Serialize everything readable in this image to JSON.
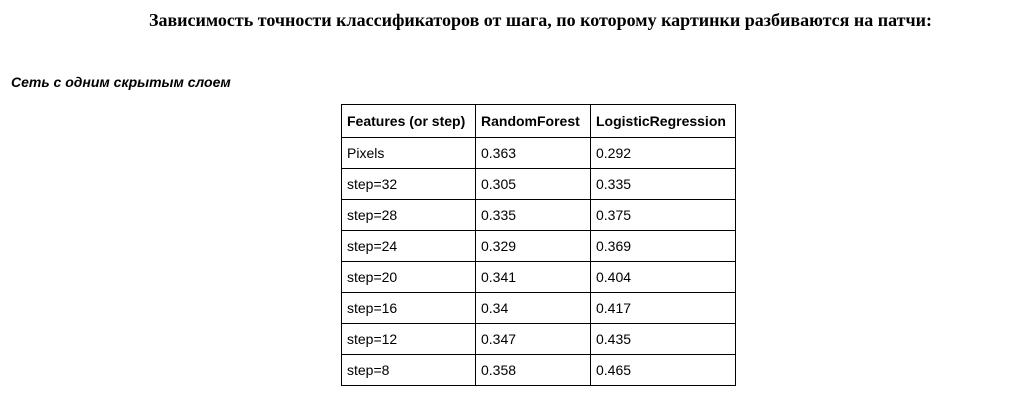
{
  "document": {
    "title": "Зависимость точности классификаторов от шага, по которому картинки разбиваются на патчи:",
    "section_heading": "Сеть с одним скрытым слоем"
  },
  "table": {
    "headers": [
      "Features (or step)",
      "RandomForest",
      "LogisticRegression"
    ],
    "rows": [
      [
        "Pixels",
        "0.363",
        "0.292"
      ],
      [
        "step=32",
        "0.305",
        "0.335"
      ],
      [
        "step=28",
        "0.335",
        "0.375"
      ],
      [
        "step=24",
        "0.329",
        "0.369"
      ],
      [
        "step=20",
        "0.341",
        "0.404"
      ],
      [
        "step=16",
        "0.34",
        "0.417"
      ],
      [
        "step=12",
        "0.347",
        "0.435"
      ],
      [
        "step=8",
        "0.358",
        "0.465"
      ]
    ]
  }
}
